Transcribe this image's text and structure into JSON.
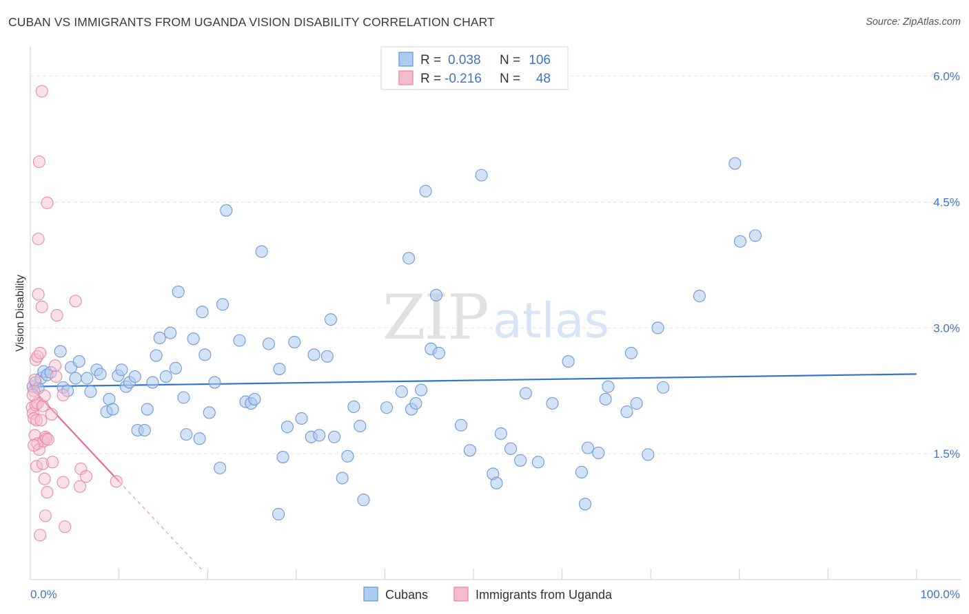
{
  "title": "CUBAN VS IMMIGRANTS FROM UGANDA VISION DISABILITY CORRELATION CHART",
  "source": "Source: ZipAtlas.com",
  "colors": {
    "blue_fill": "#aecbf0",
    "blue_stroke": "#6c9ad8",
    "blue_line": "#2f74d0",
    "pink_fill": "#f6bccd",
    "pink_stroke": "#ea8aa8",
    "pink_line": "#e8699a",
    "value_text": "#3f74c9",
    "grid": "#e2e2e2"
  },
  "watermark": {
    "zip": "ZIP",
    "atlas": "atlas"
  },
  "legend": {
    "r_label": "R =",
    "n_label": "N =",
    "rows": [
      {
        "r": "0.038",
        "n": "106"
      },
      {
        "r": "-0.216",
        "n": "48"
      }
    ]
  },
  "chart_data": {
    "type": "scatter",
    "title": "CUBAN VS IMMIGRANTS FROM UGANDA VISION DISABILITY CORRELATION CHART",
    "xlabel": "",
    "ylabel": "Vision Disability",
    "xlim": [
      0,
      100
    ],
    "ylim": [
      0,
      6.35
    ],
    "x_tick_labels": [
      "0.0%",
      "100.0%"
    ],
    "y_ticks": [
      1.5,
      3.0,
      4.5,
      6.0
    ],
    "y_tick_labels": [
      "1.5%",
      "3.0%",
      "4.5%",
      "6.0%"
    ],
    "series": [
      {
        "name": "Cubans",
        "trend": {
          "x": [
            0,
            100
          ],
          "y": [
            2.3,
            2.45
          ]
        },
        "points": [
          [
            0.3,
            2.3
          ],
          [
            0.6,
            2.35
          ],
          [
            0.9,
            2.28
          ],
          [
            1.2,
            2.4
          ],
          [
            1.5,
            2.48
          ],
          [
            1.9,
            2.44
          ],
          [
            2.3,
            2.47
          ],
          [
            3.4,
            2.72
          ],
          [
            3.7,
            2.29
          ],
          [
            4.2,
            2.25
          ],
          [
            4.6,
            2.53
          ],
          [
            5.5,
            2.6
          ],
          [
            5.1,
            2.4
          ],
          [
            6.4,
            2.4
          ],
          [
            6.8,
            2.24
          ],
          [
            7.5,
            2.5
          ],
          [
            7.9,
            2.45
          ],
          [
            8.6,
            2.0
          ],
          [
            8.9,
            2.15
          ],
          [
            9.3,
            2.03
          ],
          [
            9.9,
            2.43
          ],
          [
            10.3,
            2.5
          ],
          [
            10.8,
            2.3
          ],
          [
            11.2,
            2.35
          ],
          [
            11.8,
            2.42
          ],
          [
            12.1,
            1.78
          ],
          [
            12.9,
            1.78
          ],
          [
            13.2,
            2.03
          ],
          [
            13.8,
            2.35
          ],
          [
            14.2,
            2.67
          ],
          [
            14.6,
            2.88
          ],
          [
            15.3,
            2.42
          ],
          [
            15.8,
            2.94
          ],
          [
            16.4,
            2.52
          ],
          [
            16.7,
            3.43
          ],
          [
            17.3,
            2.17
          ],
          [
            17.6,
            1.73
          ],
          [
            18.4,
            2.87
          ],
          [
            19.1,
            1.68
          ],
          [
            19.4,
            3.19
          ],
          [
            19.7,
            2.68
          ],
          [
            20.2,
            1.99
          ],
          [
            20.8,
            2.35
          ],
          [
            21.4,
            1.33
          ],
          [
            21.7,
            3.28
          ],
          [
            22.1,
            4.4
          ],
          [
            23.6,
            2.85
          ],
          [
            24.3,
            2.12
          ],
          [
            24.9,
            2.1
          ],
          [
            25.3,
            2.15
          ],
          [
            26.1,
            3.91
          ],
          [
            26.9,
            2.81
          ],
          [
            28.0,
            0.78
          ],
          [
            28.1,
            2.51
          ],
          [
            28.5,
            1.46
          ],
          [
            29.0,
            1.82
          ],
          [
            29.8,
            2.83
          ],
          [
            30.6,
            1.92
          ],
          [
            31.7,
            1.7
          ],
          [
            32.0,
            2.68
          ],
          [
            32.6,
            1.72
          ],
          [
            33.5,
            2.66
          ],
          [
            33.9,
            3.1
          ],
          [
            34.3,
            1.7
          ],
          [
            35.2,
            1.21
          ],
          [
            35.8,
            1.47
          ],
          [
            36.5,
            2.06
          ],
          [
            37.2,
            1.83
          ],
          [
            37.6,
            0.95
          ],
          [
            40.2,
            2.05
          ],
          [
            41.9,
            2.24
          ],
          [
            42.7,
            3.83
          ],
          [
            43.0,
            2.03
          ],
          [
            43.5,
            2.1
          ],
          [
            44.1,
            2.26
          ],
          [
            44.6,
            4.63
          ],
          [
            45.2,
            2.75
          ],
          [
            45.8,
            3.39
          ],
          [
            46.1,
            2.7
          ],
          [
            48.6,
            1.84
          ],
          [
            49.6,
            1.54
          ],
          [
            50.9,
            4.82
          ],
          [
            52.2,
            1.26
          ],
          [
            52.6,
            1.15
          ],
          [
            53.1,
            1.74
          ],
          [
            54.2,
            1.56
          ],
          [
            55.3,
            1.42
          ],
          [
            55.9,
            2.22
          ],
          [
            57.3,
            1.4
          ],
          [
            58.9,
            2.1
          ],
          [
            60.7,
            2.6
          ],
          [
            62.2,
            1.28
          ],
          [
            62.6,
            0.9
          ],
          [
            62.9,
            1.57
          ],
          [
            64.1,
            1.51
          ],
          [
            64.9,
            2.15
          ],
          [
            65.2,
            2.3
          ],
          [
            67.3,
            2.0
          ],
          [
            67.8,
            2.7
          ],
          [
            68.4,
            2.1
          ],
          [
            69.7,
            1.49
          ],
          [
            70.8,
            3.0
          ],
          [
            71.4,
            2.29
          ],
          [
            75.5,
            3.38
          ],
          [
            79.5,
            4.96
          ],
          [
            80.1,
            4.03
          ],
          [
            81.8,
            4.1
          ]
        ]
      },
      {
        "name": "Immigrants from Uganda",
        "trend": {
          "x": [
            0,
            10
          ],
          "y": [
            2.3,
            1.17
          ],
          "dashed_x": [
            10,
            19.5
          ],
          "dashed_y": [
            1.17,
            0.1
          ]
        },
        "points": [
          [
            0.2,
            2.05
          ],
          [
            0.3,
            1.98
          ],
          [
            0.4,
            2.25
          ],
          [
            0.4,
            1.92
          ],
          [
            0.5,
            2.38
          ],
          [
            0.5,
            1.72
          ],
          [
            0.6,
            2.62
          ],
          [
            0.6,
            2.08
          ],
          [
            0.7,
            1.9
          ],
          [
            0.7,
            1.35
          ],
          [
            0.8,
            2.66
          ],
          [
            0.8,
            2.1
          ],
          [
            0.8,
            1.62
          ],
          [
            0.9,
            4.06
          ],
          [
            0.9,
            3.4
          ],
          [
            1.0,
            4.98
          ],
          [
            1.0,
            1.55
          ],
          [
            1.1,
            0.53
          ],
          [
            1.2,
            1.9
          ],
          [
            1.3,
            3.25
          ],
          [
            1.3,
            5.82
          ],
          [
            1.4,
            2.07
          ],
          [
            1.4,
            1.38
          ],
          [
            1.5,
            1.65
          ],
          [
            1.6,
            2.19
          ],
          [
            1.6,
            1.2
          ],
          [
            1.7,
            1.7
          ],
          [
            1.7,
            0.76
          ],
          [
            1.8,
            1.68
          ],
          [
            1.9,
            4.49
          ],
          [
            1.9,
            1.04
          ],
          [
            2.4,
            1.97
          ],
          [
            2.5,
            1.4
          ],
          [
            2.8,
            2.55
          ],
          [
            2.9,
            2.42
          ],
          [
            3.0,
            3.15
          ],
          [
            3.7,
            2.2
          ],
          [
            3.7,
            1.16
          ],
          [
            3.9,
            0.63
          ],
          [
            5.1,
            3.32
          ],
          [
            5.6,
            1.11
          ],
          [
            5.7,
            1.32
          ],
          [
            6.3,
            1.23
          ],
          [
            9.7,
            1.17
          ],
          [
            0.4,
            1.6
          ],
          [
            0.3,
            2.2
          ],
          [
            1.1,
            2.7
          ],
          [
            2.0,
            1.67
          ]
        ]
      }
    ]
  },
  "bottom_legend": [
    {
      "label": "Cubans"
    },
    {
      "label": "Immigrants from Uganda"
    }
  ]
}
